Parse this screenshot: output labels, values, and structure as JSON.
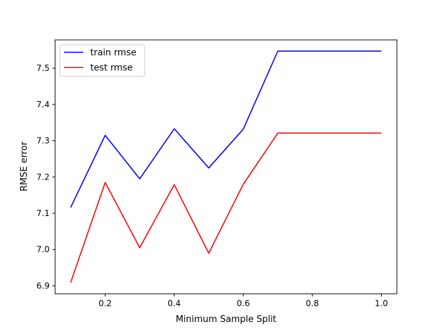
{
  "chart_data": {
    "type": "line",
    "xlabel": "Minimum Sample Split",
    "ylabel": "RMSE error",
    "xlim": [
      0.055,
      1.045
    ],
    "ylim": [
      6.878,
      7.578
    ],
    "xticks": [
      0.2,
      0.4,
      0.6,
      0.8,
      1.0
    ],
    "xtick_labels": [
      "0.2",
      "0.4",
      "0.6",
      "0.8",
      "1.0"
    ],
    "yticks": [
      6.9,
      7.0,
      7.1,
      7.2,
      7.3,
      7.4,
      7.5
    ],
    "ytick_labels": [
      "6.9",
      "7.0",
      "7.1",
      "7.2",
      "7.3",
      "7.4",
      "7.5"
    ],
    "grid": false,
    "legend_position": "upper-left",
    "x": [
      0.1,
      0.2,
      0.3,
      0.4,
      0.5,
      0.6,
      0.7,
      0.8,
      0.9,
      1.0
    ],
    "series": [
      {
        "name": "train rmse",
        "color": "#0000ff",
        "values": [
          7.116,
          7.315,
          7.195,
          7.333,
          7.225,
          7.332,
          7.547,
          7.547,
          7.547,
          7.547
        ]
      },
      {
        "name": "test rmse",
        "color": "#ff0000",
        "values": [
          6.909,
          7.185,
          7.005,
          7.179,
          6.99,
          7.18,
          7.321,
          7.321,
          7.321,
          7.321
        ]
      }
    ]
  }
}
